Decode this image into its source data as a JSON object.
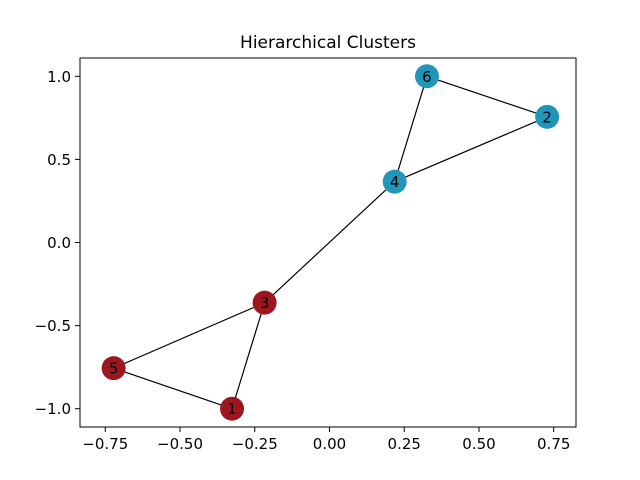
{
  "chart_data": {
    "type": "network",
    "title": "Hierarchical Clusters",
    "xlabel": "",
    "ylabel": "",
    "xlim": [
      -0.8345,
      0.8245
    ],
    "ylim": [
      -1.11,
      1.11
    ],
    "x_ticks": [
      -0.75,
      -0.5,
      -0.25,
      0.0,
      0.25,
      0.5,
      0.75
    ],
    "x_tick_labels": [
      "−0.75",
      "−0.50",
      "−0.25",
      "0.00",
      "0.25",
      "0.50",
      "0.75"
    ],
    "y_ticks": [
      1.0,
      0.5,
      0.0,
      -0.5,
      -1.0
    ],
    "y_tick_labels": [
      "1.0",
      "0.5",
      "0.0",
      "−0.5",
      "−1.0"
    ],
    "grid": false,
    "cluster_colors": {
      "A": "#2196b8",
      "B": "#9e1620"
    },
    "nodes": [
      {
        "id": "1",
        "x": -0.326,
        "y": -1.0,
        "cluster": "B"
      },
      {
        "id": "2",
        "x": 0.728,
        "y": 0.756,
        "cluster": "A"
      },
      {
        "id": "3",
        "x": -0.217,
        "y": -0.362,
        "cluster": "B"
      },
      {
        "id": "4",
        "x": 0.218,
        "y": 0.366,
        "cluster": "A"
      },
      {
        "id": "5",
        "x": -0.722,
        "y": -0.756,
        "cluster": "B"
      },
      {
        "id": "6",
        "x": 0.326,
        "y": 1.0,
        "cluster": "A"
      }
    ],
    "edges": [
      [
        "6",
        "2"
      ],
      [
        "6",
        "4"
      ],
      [
        "2",
        "4"
      ],
      [
        "4",
        "3"
      ],
      [
        "3",
        "5"
      ],
      [
        "3",
        "1"
      ],
      [
        "5",
        "1"
      ]
    ]
  }
}
